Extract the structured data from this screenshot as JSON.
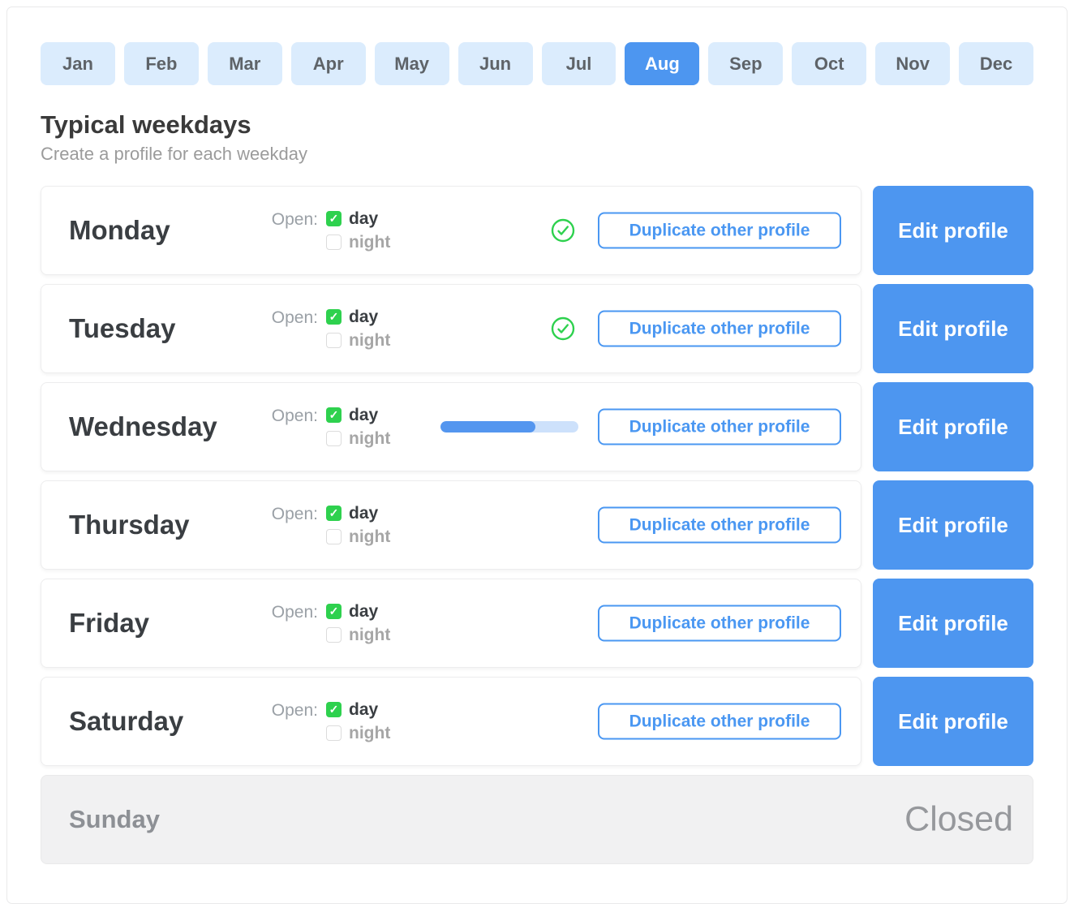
{
  "colors": {
    "accent_blue": "#4d96f0",
    "tab_inactive_bg": "#dbecfd",
    "checkbox_green": "#2ed14e",
    "check_circle_green": "#2ed14e",
    "progress_fill": "#5496ef",
    "progress_track": "#cde1fb",
    "closed_row_bg": "#f1f1f2"
  },
  "months": {
    "active": "Aug",
    "items": [
      "Jan",
      "Feb",
      "Mar",
      "Apr",
      "May",
      "Jun",
      "Jul",
      "Aug",
      "Sep",
      "Oct",
      "Nov",
      "Dec"
    ]
  },
  "header": {
    "title": "Typical weekdays",
    "subtitle": "Create a profile for each weekday"
  },
  "labels": {
    "open": "Open:",
    "day_option": "day",
    "night_option": "night",
    "duplicate": "Duplicate other profile",
    "edit": "Edit profile"
  },
  "days": [
    {
      "name": "Monday",
      "day_checked": true,
      "night_checked": false,
      "status": "confirmed"
    },
    {
      "name": "Tuesday",
      "day_checked": true,
      "night_checked": false,
      "status": "confirmed"
    },
    {
      "name": "Wednesday",
      "day_checked": true,
      "night_checked": false,
      "status": "loading",
      "progress_percent": 69
    },
    {
      "name": "Thursday",
      "day_checked": true,
      "night_checked": false,
      "status": "none"
    },
    {
      "name": "Friday",
      "day_checked": true,
      "night_checked": false,
      "status": "none"
    },
    {
      "name": "Saturday",
      "day_checked": true,
      "night_checked": false,
      "status": "none"
    },
    {
      "name": "Sunday",
      "closed_label": "Closed",
      "status": "closed"
    }
  ]
}
